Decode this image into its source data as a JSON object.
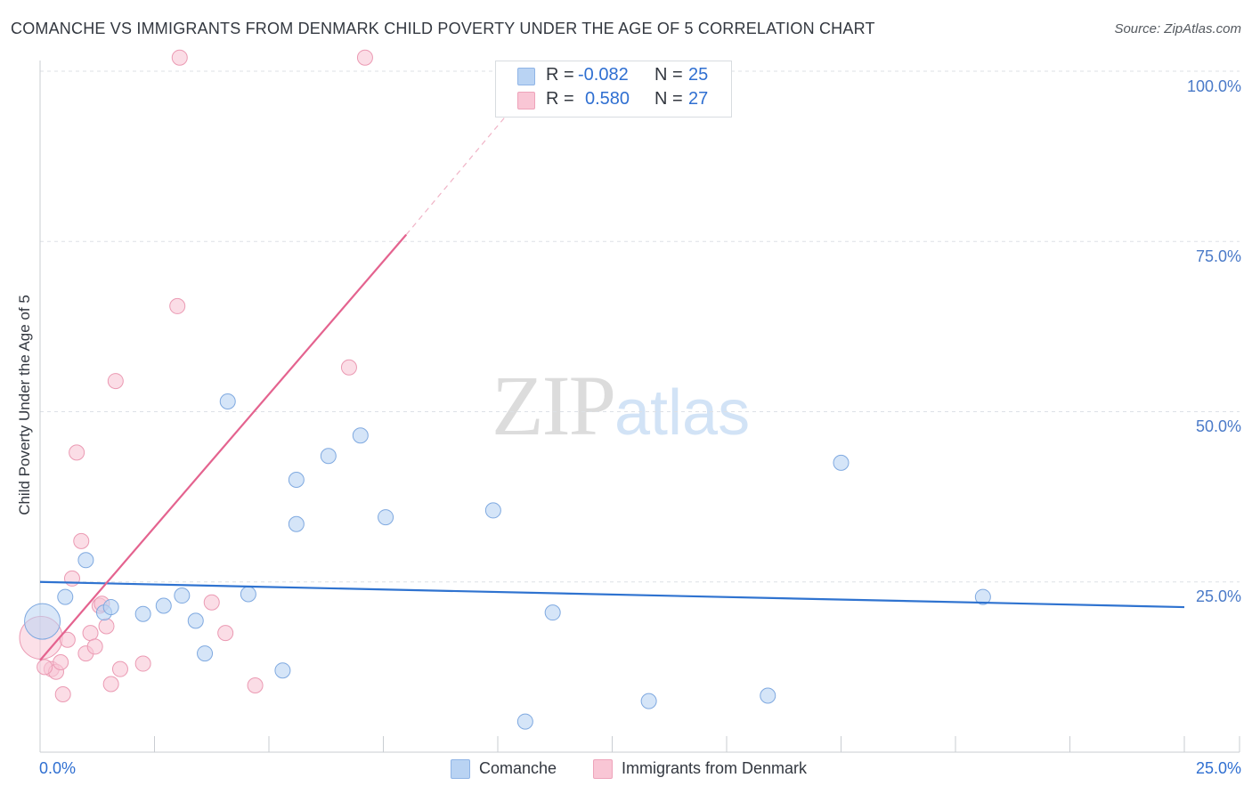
{
  "header": {
    "title": "COMANCHE VS IMMIGRANTS FROM DENMARK CHILD POVERTY UNDER THE AGE OF 5 CORRELATION CHART",
    "source": "Source: ZipAtlas.com"
  },
  "watermark": {
    "zip": "ZIP",
    "atlas": "atlas"
  },
  "legend": {
    "rows": [
      {
        "r_label": "R =",
        "r_value": "-0.082",
        "n_label": "N =",
        "n_value": "25"
      },
      {
        "r_label": "R =",
        "r_value": "0.580",
        "n_label": "N =",
        "n_value": "27"
      }
    ]
  },
  "colors": {
    "comanche_fill": "#b9d3f3",
    "comanche_stroke": "#7fa9e0",
    "comanche_line": "#2f73d0",
    "denmark_fill": "#f9c6d5",
    "denmark_stroke": "#eb9ab3",
    "denmark_line": "#e4638f",
    "grid": "#dde1e6",
    "axis_text": "#2f6fd1"
  },
  "chart_data": {
    "type": "scatter",
    "title": "COMANCHE VS IMMIGRANTS FROM DENMARK CHILD POVERTY UNDER THE AGE OF 5 CORRELATION CHART",
    "xlabel": "",
    "ylabel": "Child Poverty Under the Age of 5",
    "xlim": [
      0,
      25
    ],
    "ylim": [
      0,
      100
    ],
    "x_tick_labels": [
      "0.0%",
      "25.0%"
    ],
    "y_tick_labels": [
      "25.0%",
      "50.0%",
      "75.0%",
      "100.0%"
    ],
    "y_ticks": [
      25,
      50,
      75,
      100
    ],
    "grid": true,
    "legend_position": "bottom",
    "series": [
      {
        "name": "Comanche",
        "r": -0.082,
        "n": 25,
        "points": [
          {
            "x": 0.05,
            "y": 19.2,
            "big": true
          },
          {
            "x": 0.55,
            "y": 22.8
          },
          {
            "x": 1.0,
            "y": 28.2
          },
          {
            "x": 1.4,
            "y": 20.5
          },
          {
            "x": 1.55,
            "y": 21.3
          },
          {
            "x": 2.25,
            "y": 20.3
          },
          {
            "x": 2.7,
            "y": 21.5
          },
          {
            "x": 3.1,
            "y": 23.0
          },
          {
            "x": 3.4,
            "y": 19.3
          },
          {
            "x": 3.6,
            "y": 14.5
          },
          {
            "x": 4.1,
            "y": 51.5
          },
          {
            "x": 4.55,
            "y": 23.2
          },
          {
            "x": 5.3,
            "y": 12.0
          },
          {
            "x": 5.6,
            "y": 33.5
          },
          {
            "x": 5.6,
            "y": 40.0
          },
          {
            "x": 6.3,
            "y": 43.5
          },
          {
            "x": 7.0,
            "y": 46.5
          },
          {
            "x": 7.55,
            "y": 34.5
          },
          {
            "x": 9.9,
            "y": 35.5
          },
          {
            "x": 10.6,
            "y": 4.5
          },
          {
            "x": 11.2,
            "y": 20.5
          },
          {
            "x": 13.3,
            "y": 7.5
          },
          {
            "x": 15.9,
            "y": 8.3
          },
          {
            "x": 17.5,
            "y": 42.5
          },
          {
            "x": 20.6,
            "y": 22.8
          }
        ],
        "trend": {
          "x0": 0,
          "y0": 25.0,
          "x1": 25,
          "y1": 21.3
        }
      },
      {
        "name": "Immigrants from Denmark",
        "r": 0.58,
        "n": 27,
        "points": [
          {
            "x": 0.02,
            "y": 16.8,
            "big": true
          },
          {
            "x": 0.25,
            "y": 12.2
          },
          {
            "x": 0.35,
            "y": 11.8
          },
          {
            "x": 0.45,
            "y": 13.2
          },
          {
            "x": 0.5,
            "y": 8.5
          },
          {
            "x": 0.6,
            "y": 16.5
          },
          {
            "x": 0.7,
            "y": 25.5
          },
          {
            "x": 0.8,
            "y": 44.0
          },
          {
            "x": 0.9,
            "y": 31.0
          },
          {
            "x": 1.0,
            "y": 14.5
          },
          {
            "x": 1.1,
            "y": 17.5
          },
          {
            "x": 1.2,
            "y": 15.5
          },
          {
            "x": 1.3,
            "y": 21.5
          },
          {
            "x": 1.35,
            "y": 21.8
          },
          {
            "x": 1.45,
            "y": 18.5
          },
          {
            "x": 1.55,
            "y": 10.0
          },
          {
            "x": 1.65,
            "y": 54.5
          },
          {
            "x": 1.75,
            "y": 12.2
          },
          {
            "x": 2.25,
            "y": 13.0
          },
          {
            "x": 3.0,
            "y": 65.5
          },
          {
            "x": 3.05,
            "y": 102.0
          },
          {
            "x": 3.75,
            "y": 22.0
          },
          {
            "x": 4.05,
            "y": 17.5
          },
          {
            "x": 4.7,
            "y": 9.8
          },
          {
            "x": 6.75,
            "y": 56.5
          },
          {
            "x": 7.1,
            "y": 102.0
          },
          {
            "x": 0.1,
            "y": 12.5
          }
        ],
        "trend": {
          "x0": 0,
          "y0": 13.5,
          "x1": 8.0,
          "y1": 76.0
        },
        "trend_dashed_to": {
          "x": 11.0,
          "y": 100.0
        }
      }
    ]
  },
  "bottom_legend": {
    "items": [
      "Comanche",
      "Immigrants from Denmark"
    ]
  }
}
